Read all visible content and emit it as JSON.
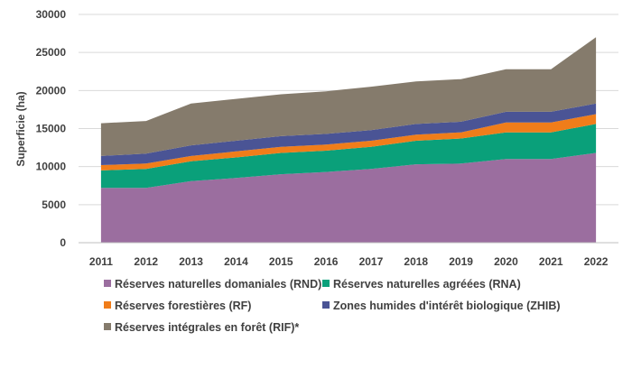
{
  "chart_data": {
    "type": "area",
    "stacked": true,
    "title": "",
    "xlabel": "",
    "ylabel": "Superficie (ha)",
    "ylim": [
      0,
      30000
    ],
    "yticks": [
      0,
      5000,
      10000,
      15000,
      20000,
      25000,
      30000
    ],
    "grid": true,
    "legend_position": "bottom",
    "categories": [
      "2011",
      "2012",
      "2013",
      "2014",
      "2015",
      "2016",
      "2017",
      "2018",
      "2019",
      "2020",
      "2021",
      "2022"
    ],
    "series": [
      {
        "name": "Réserves naturelles domaniales (RND)",
        "color": "#9b6e9f",
        "values": [
          7200,
          7200,
          8100,
          8500,
          9000,
          9300,
          9700,
          10300,
          10400,
          11000,
          11000,
          11800
        ]
      },
      {
        "name": "Réserves naturelles agréées (RNA)",
        "color": "#0aa07a",
        "values": [
          2300,
          2500,
          2600,
          2700,
          2800,
          2800,
          2900,
          3100,
          3300,
          3500,
          3500,
          3800
        ]
      },
      {
        "name": "Réserves forestières (RF)",
        "color": "#f07d1a",
        "values": [
          700,
          700,
          700,
          800,
          800,
          800,
          800,
          800,
          800,
          1300,
          1300,
          1300
        ]
      },
      {
        "name": "Zones humides d'intérêt biologique (ZHIB)",
        "color": "#4a5495",
        "values": [
          1200,
          1300,
          1400,
          1400,
          1400,
          1400,
          1400,
          1400,
          1400,
          1400,
          1400,
          1400
        ]
      },
      {
        "name": "Réserves intégrales en forêt (RIF)*",
        "color": "#857b6c",
        "values": [
          4300,
          4300,
          5500,
          5500,
          5500,
          5600,
          5700,
          5600,
          5600,
          5600,
          5600,
          8700
        ]
      }
    ]
  }
}
